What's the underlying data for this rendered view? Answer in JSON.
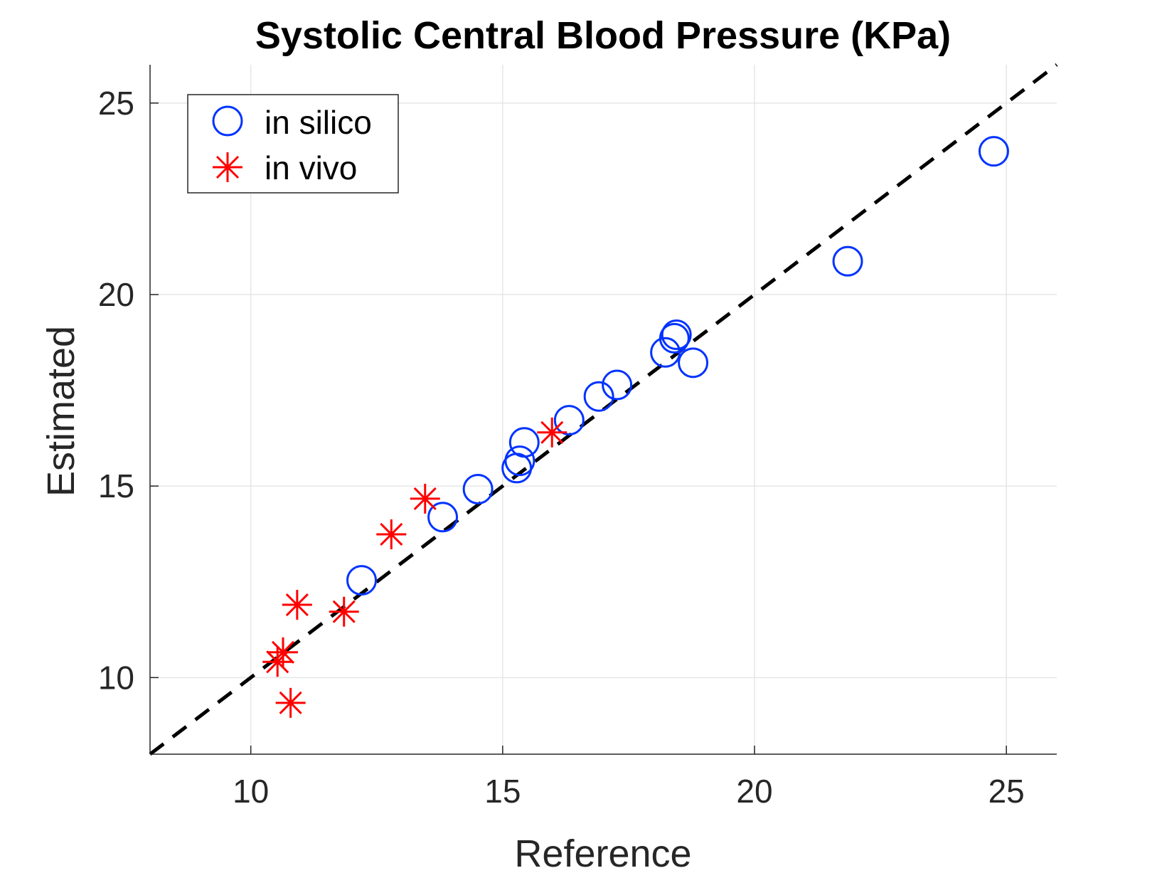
{
  "chart_data": {
    "type": "scatter",
    "title": "Systolic Central Blood Pressure (KPa)",
    "xlabel": "Reference",
    "ylabel": "Estimated",
    "xlim": [
      8,
      26
    ],
    "ylim": [
      8,
      26
    ],
    "xticks": [
      10,
      15,
      20,
      25
    ],
    "yticks": [
      10,
      15,
      20,
      25
    ],
    "grid": true,
    "legend_position": "top-left",
    "reference_line": {
      "type": "identity y=x",
      "style": "dashed",
      "color": "#000000"
    },
    "series": [
      {
        "name": "in silico",
        "marker": "circle",
        "color": "#0033ff",
        "points": [
          [
            12.2,
            12.54
          ],
          [
            13.81,
            14.19
          ],
          [
            14.51,
            14.92
          ],
          [
            15.28,
            15.47
          ],
          [
            15.34,
            15.66
          ],
          [
            15.43,
            16.14
          ],
          [
            16.32,
            16.72
          ],
          [
            16.91,
            17.34
          ],
          [
            17.27,
            17.64
          ],
          [
            18.23,
            18.49
          ],
          [
            18.41,
            18.86
          ],
          [
            18.45,
            18.95
          ],
          [
            18.78,
            18.22
          ],
          [
            21.85,
            20.87
          ],
          [
            24.75,
            23.74
          ]
        ]
      },
      {
        "name": "in vivo",
        "marker": "asterisk",
        "color": "#ff0000",
        "points": [
          [
            10.53,
            10.41
          ],
          [
            10.64,
            10.66
          ],
          [
            10.79,
            9.34
          ],
          [
            10.92,
            11.9
          ],
          [
            11.85,
            11.72
          ],
          [
            12.79,
            13.74
          ],
          [
            13.46,
            14.67
          ],
          [
            15.98,
            16.4
          ]
        ]
      }
    ]
  }
}
